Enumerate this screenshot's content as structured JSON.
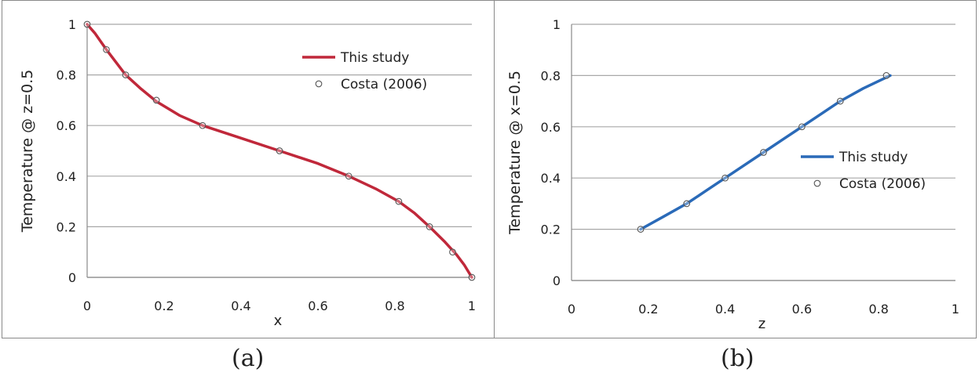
{
  "chart_data": [
    {
      "type": "line",
      "ylabel": "Temperature @ z=0.5",
      "xlabel": "x",
      "xlim": [
        0,
        1
      ],
      "ylim": [
        0,
        1
      ],
      "xticks": [
        "0",
        "0.2",
        "0.4",
        "0.6",
        "0.8",
        "1"
      ],
      "yticks": [
        "0",
        "0.2",
        "0.4",
        "0.6",
        "0.8",
        "1"
      ],
      "grid": "horizontal",
      "legend_position": "top-right",
      "series": [
        {
          "name": "This study",
          "style": "line",
          "color": "#c0283a",
          "x": [
            0,
            0.02,
            0.05,
            0.1,
            0.14,
            0.18,
            0.24,
            0.3,
            0.4,
            0.5,
            0.6,
            0.68,
            0.75,
            0.81,
            0.85,
            0.89,
            0.93,
            0.96,
            0.98,
            1.0
          ],
          "y": [
            1.0,
            0.965,
            0.9,
            0.8,
            0.745,
            0.695,
            0.64,
            0.6,
            0.55,
            0.5,
            0.45,
            0.4,
            0.35,
            0.3,
            0.255,
            0.2,
            0.14,
            0.09,
            0.05,
            0.0
          ]
        },
        {
          "name": "Costa (2006)",
          "style": "markers",
          "color": "#555555",
          "x": [
            0,
            0.05,
            0.1,
            0.18,
            0.3,
            0.5,
            0.68,
            0.81,
            0.89,
            0.95,
            1.0
          ],
          "y": [
            1.0,
            0.9,
            0.8,
            0.7,
            0.6,
            0.5,
            0.4,
            0.3,
            0.2,
            0.1,
            0.0
          ]
        }
      ],
      "caption": "(a)"
    },
    {
      "type": "line",
      "ylabel": "Temperature @ x=0.5",
      "xlabel": "z",
      "xlim": [
        0,
        1
      ],
      "ylim": [
        0,
        1
      ],
      "xticks": [
        "0",
        "0.2",
        "0.4",
        "0.6",
        "0.8",
        "1"
      ],
      "yticks": [
        "0",
        "0.2",
        "0.4",
        "0.6",
        "0.8",
        "1"
      ],
      "grid": "horizontal",
      "legend_position": "middle-right",
      "series": [
        {
          "name": "This study",
          "style": "line",
          "color": "#2a6ab8",
          "x": [
            0.18,
            0.24,
            0.3,
            0.35,
            0.4,
            0.45,
            0.5,
            0.55,
            0.6,
            0.65,
            0.7,
            0.76,
            0.83
          ],
          "y": [
            0.2,
            0.25,
            0.3,
            0.35,
            0.4,
            0.45,
            0.5,
            0.55,
            0.6,
            0.65,
            0.7,
            0.75,
            0.8
          ]
        },
        {
          "name": "Costa (2006)",
          "style": "markers",
          "color": "#555555",
          "x": [
            0.18,
            0.3,
            0.4,
            0.5,
            0.6,
            0.7,
            0.82
          ],
          "y": [
            0.2,
            0.3,
            0.4,
            0.5,
            0.6,
            0.7,
            0.8
          ]
        }
      ],
      "caption": "(b)"
    }
  ]
}
